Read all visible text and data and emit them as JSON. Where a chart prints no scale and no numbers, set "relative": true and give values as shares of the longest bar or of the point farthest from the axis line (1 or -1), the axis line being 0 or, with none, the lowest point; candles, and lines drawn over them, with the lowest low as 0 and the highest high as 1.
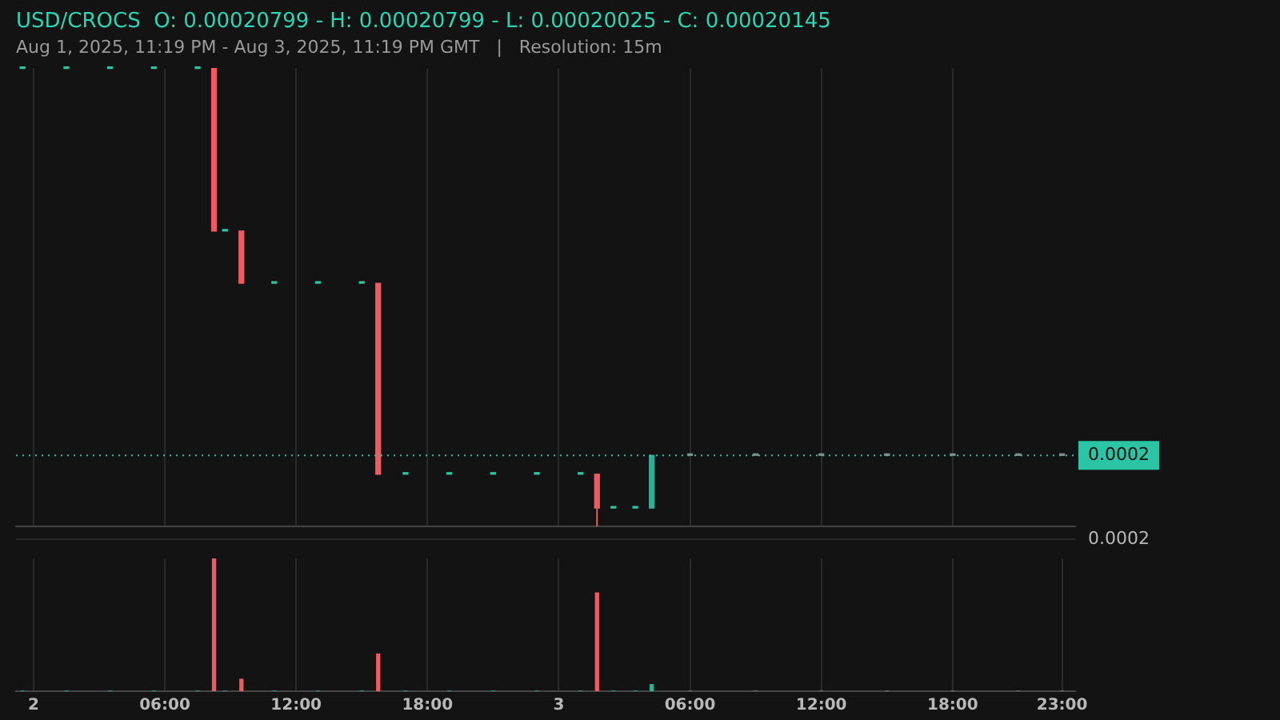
{
  "chart_data": [
    {
      "type": "candlestick",
      "relative": true,
      "title": "USD/CROCS  O: 0.00020799 - H: 0.00020799 - L: 0.00020025 - C: 0.00020145",
      "subtitle": "Aug 1, 2025, 11:19 PM - Aug 3, 2025, 11:19 PM GMT   |   Resolution: 15m",
      "x": [
        "2025-08-01T23:30",
        "2025-08-02T01:30",
        "2025-08-02T03:30",
        "2025-08-02T05:30",
        "2025-08-02T07:30",
        "2025-08-02T08:15",
        "2025-08-02T08:45",
        "2025-08-02T09:30",
        "2025-08-02T11:00",
        "2025-08-02T13:00",
        "2025-08-02T15:00",
        "2025-08-02T15:45",
        "2025-08-02T17:00",
        "2025-08-02T19:00",
        "2025-08-02T21:00",
        "2025-08-02T23:00",
        "2025-08-03T01:00",
        "2025-08-03T01:45",
        "2025-08-03T02:30",
        "2025-08-03T03:30",
        "2025-08-03T04:15",
        "2025-08-03T06:00",
        "2025-08-03T09:00",
        "2025-08-03T12:00",
        "2025-08-03T15:00",
        "2025-08-03T18:00",
        "2025-08-03T21:00",
        "2025-08-03T23:00"
      ],
      "ohlc": [
        [
          1,
          1,
          1,
          1
        ],
        [
          1,
          1,
          1,
          1
        ],
        [
          1,
          1,
          1,
          1
        ],
        [
          1,
          1,
          1,
          1
        ],
        [
          1,
          1,
          1,
          1
        ],
        [
          1,
          1,
          0.645,
          0.645
        ],
        [
          0.645,
          0.645,
          0.645,
          0.645
        ],
        [
          0.645,
          0.645,
          0.531,
          0.531
        ],
        [
          0.531,
          0.531,
          0.531,
          0.531
        ],
        [
          0.531,
          0.531,
          0.531,
          0.531
        ],
        [
          0.531,
          0.531,
          0.531,
          0.531
        ],
        [
          0.531,
          0.531,
          0.114,
          0.114
        ],
        [
          0.114,
          0.114,
          0.114,
          0.114
        ],
        [
          0.114,
          0.114,
          0.114,
          0.114
        ],
        [
          0.114,
          0.114,
          0.114,
          0.114
        ],
        [
          0.114,
          0.114,
          0.114,
          0.114
        ],
        [
          0.114,
          0.114,
          0.114,
          0.114
        ],
        [
          0.114,
          0.114,
          0,
          0.04
        ],
        [
          0.04,
          0.04,
          0.04,
          0.04
        ],
        [
          0.04,
          0.04,
          0.04,
          0.04
        ],
        [
          0.04,
          0.155,
          0.04,
          0.155
        ],
        [
          0.155,
          0.155,
          0.155,
          0.155
        ],
        [
          0.155,
          0.155,
          0.155,
          0.155
        ],
        [
          0.155,
          0.155,
          0.155,
          0.155
        ],
        [
          0.155,
          0.155,
          0.155,
          0.155
        ],
        [
          0.155,
          0.155,
          0.155,
          0.155
        ],
        [
          0.155,
          0.155,
          0.155,
          0.155
        ],
        [
          0.155,
          0.155,
          0.155,
          0.155
        ]
      ],
      "colors": [
        "#2bc4a4",
        "#2bc4a4",
        "#2bc4a4",
        "#2bc4a4",
        "#2bc4a4",
        "#f05a63",
        "#2bc4a4",
        "#f05a63",
        "#2bc4a4",
        "#2bc4a4",
        "#2bc4a4",
        "#f05a63",
        "#2bc4a4",
        "#2bc4a4",
        "#2bc4a4",
        "#2bc4a4",
        "#2bc4a4",
        "#f05a63",
        "#2bc4a4",
        "#2bc4a4",
        "#26b39a",
        "#8a8a8a",
        "#8a8a8a",
        "#8a8a8a",
        "#8a8a8a",
        "#8a8a8a",
        "#8a8a8a",
        "#8a8a8a"
      ],
      "xlim": [
        "2025-08-01T23:12",
        "2025-08-03T23:36"
      ],
      "xticks": [
        {
          "value": "2025-08-02T00:00",
          "label": null
        },
        {
          "value": "2025-08-02T06:00",
          "label": null
        },
        {
          "value": "2025-08-02T12:00",
          "label": null
        },
        {
          "value": "2025-08-02T18:00",
          "label": null
        },
        {
          "value": "2025-08-03T00:00",
          "label": null
        },
        {
          "value": "2025-08-03T06:00",
          "label": null
        },
        {
          "value": "2025-08-03T12:00",
          "label": null
        },
        {
          "value": "2025-08-03T18:00",
          "label": null
        }
      ],
      "ref_lines": [
        {
          "axis": "y",
          "value": 0.155,
          "color": "#2bc4a4",
          "line_style": "dotted"
        }
      ],
      "annotations": [
        "0.0002",
        "0.0002"
      ],
      "grid": "x",
      "tick_labels": false
    },
    {
      "type": "bar",
      "relative": true,
      "x": [
        "2025-08-01T23:30",
        "2025-08-02T01:30",
        "2025-08-02T03:30",
        "2025-08-02T05:30",
        "2025-08-02T07:30",
        "2025-08-02T08:15",
        "2025-08-02T08:45",
        "2025-08-02T09:30",
        "2025-08-02T11:00",
        "2025-08-02T13:00",
        "2025-08-02T15:00",
        "2025-08-02T15:45",
        "2025-08-02T17:00",
        "2025-08-02T19:00",
        "2025-08-02T21:00",
        "2025-08-02T23:00",
        "2025-08-03T01:00",
        "2025-08-03T01:45",
        "2025-08-03T02:30",
        "2025-08-03T03:30",
        "2025-08-03T04:15",
        "2025-08-03T06:00",
        "2025-08-03T09:00",
        "2025-08-03T12:00",
        "2025-08-03T15:00",
        "2025-08-03T18:00",
        "2025-08-03T21:00",
        "2025-08-03T23:00"
      ],
      "values": [
        0,
        0,
        0,
        0,
        0,
        1,
        0,
        0.09,
        0,
        0,
        0,
        0.28,
        0,
        0,
        0,
        0,
        0,
        0.74,
        0,
        0,
        0.05,
        0,
        0,
        0,
        0,
        0,
        0,
        0
      ],
      "colors": [
        "#2bc4a4",
        "#2bc4a4",
        "#2bc4a4",
        "#2bc4a4",
        "#2bc4a4",
        "#f05a63",
        "#2bc4a4",
        "#f05a63",
        "#2bc4a4",
        "#2bc4a4",
        "#2bc4a4",
        "#f05a63",
        "#2bc4a4",
        "#2bc4a4",
        "#2bc4a4",
        "#2bc4a4",
        "#2bc4a4",
        "#f05a63",
        "#2bc4a4",
        "#2bc4a4",
        "#26b39a",
        "#8a8a8a",
        "#8a8a8a",
        "#8a8a8a",
        "#8a8a8a",
        "#8a8a8a",
        "#8a8a8a",
        "#8a8a8a"
      ],
      "xlim": [
        "2025-08-01T23:12",
        "2025-08-03T23:36"
      ],
      "xticks": [
        {
          "value": "2025-08-02T00:00",
          "label": "2"
        },
        {
          "value": "2025-08-02T06:00",
          "label": "06:00"
        },
        {
          "value": "2025-08-02T12:00",
          "label": "12:00"
        },
        {
          "value": "2025-08-02T18:00",
          "label": "18:00"
        },
        {
          "value": "2025-08-03T00:00",
          "label": "3"
        },
        {
          "value": "2025-08-03T06:00",
          "label": "06:00"
        },
        {
          "value": "2025-08-03T12:00",
          "label": "12:00"
        },
        {
          "value": "2025-08-03T18:00",
          "label": "18:00"
        },
        {
          "value": "2025-08-03T23:00",
          "label": "23:00"
        }
      ],
      "grid": "x",
      "tick_labels": "x"
    }
  ]
}
